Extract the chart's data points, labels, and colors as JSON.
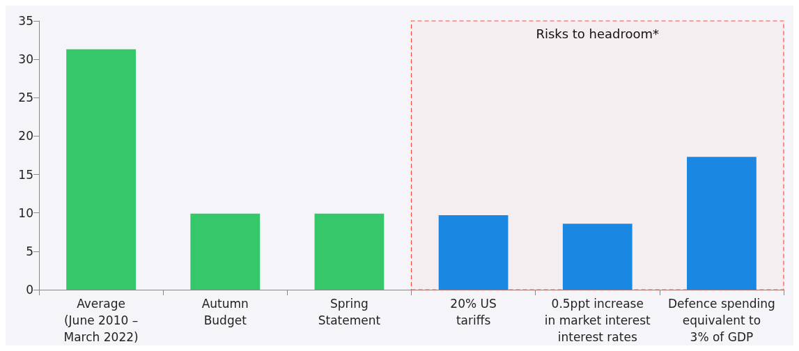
{
  "chart_data": {
    "type": "bar",
    "categories": [
      "Average\n(June 2010 –\nMarch 2022)",
      "Autumn\nBudget",
      "Spring\nStatement",
      "20% US\ntariffs",
      "0.5ppt increase\nin market interest\ninterest rates",
      "Defence spending\nequivalent to\n3% of GDP"
    ],
    "values": [
      31.3,
      9.9,
      9.9,
      9.7,
      8.6,
      17.3
    ],
    "colors": [
      "#35c76a",
      "#35c76a",
      "#35c76a",
      "#1a88e3",
      "#1a88e3",
      "#1a88e3"
    ],
    "ylim": [
      0,
      35
    ],
    "yticks": [
      0,
      5,
      10,
      15,
      20,
      25,
      30,
      35
    ],
    "grid": false,
    "bands": [
      {
        "axis": "x",
        "from": "20% US\ntariffs",
        "to": "Defence spending\nequivalent to\n3% of GDP",
        "label": "Risks to headroom*",
        "color": "#ff4b3e"
      }
    ]
  }
}
